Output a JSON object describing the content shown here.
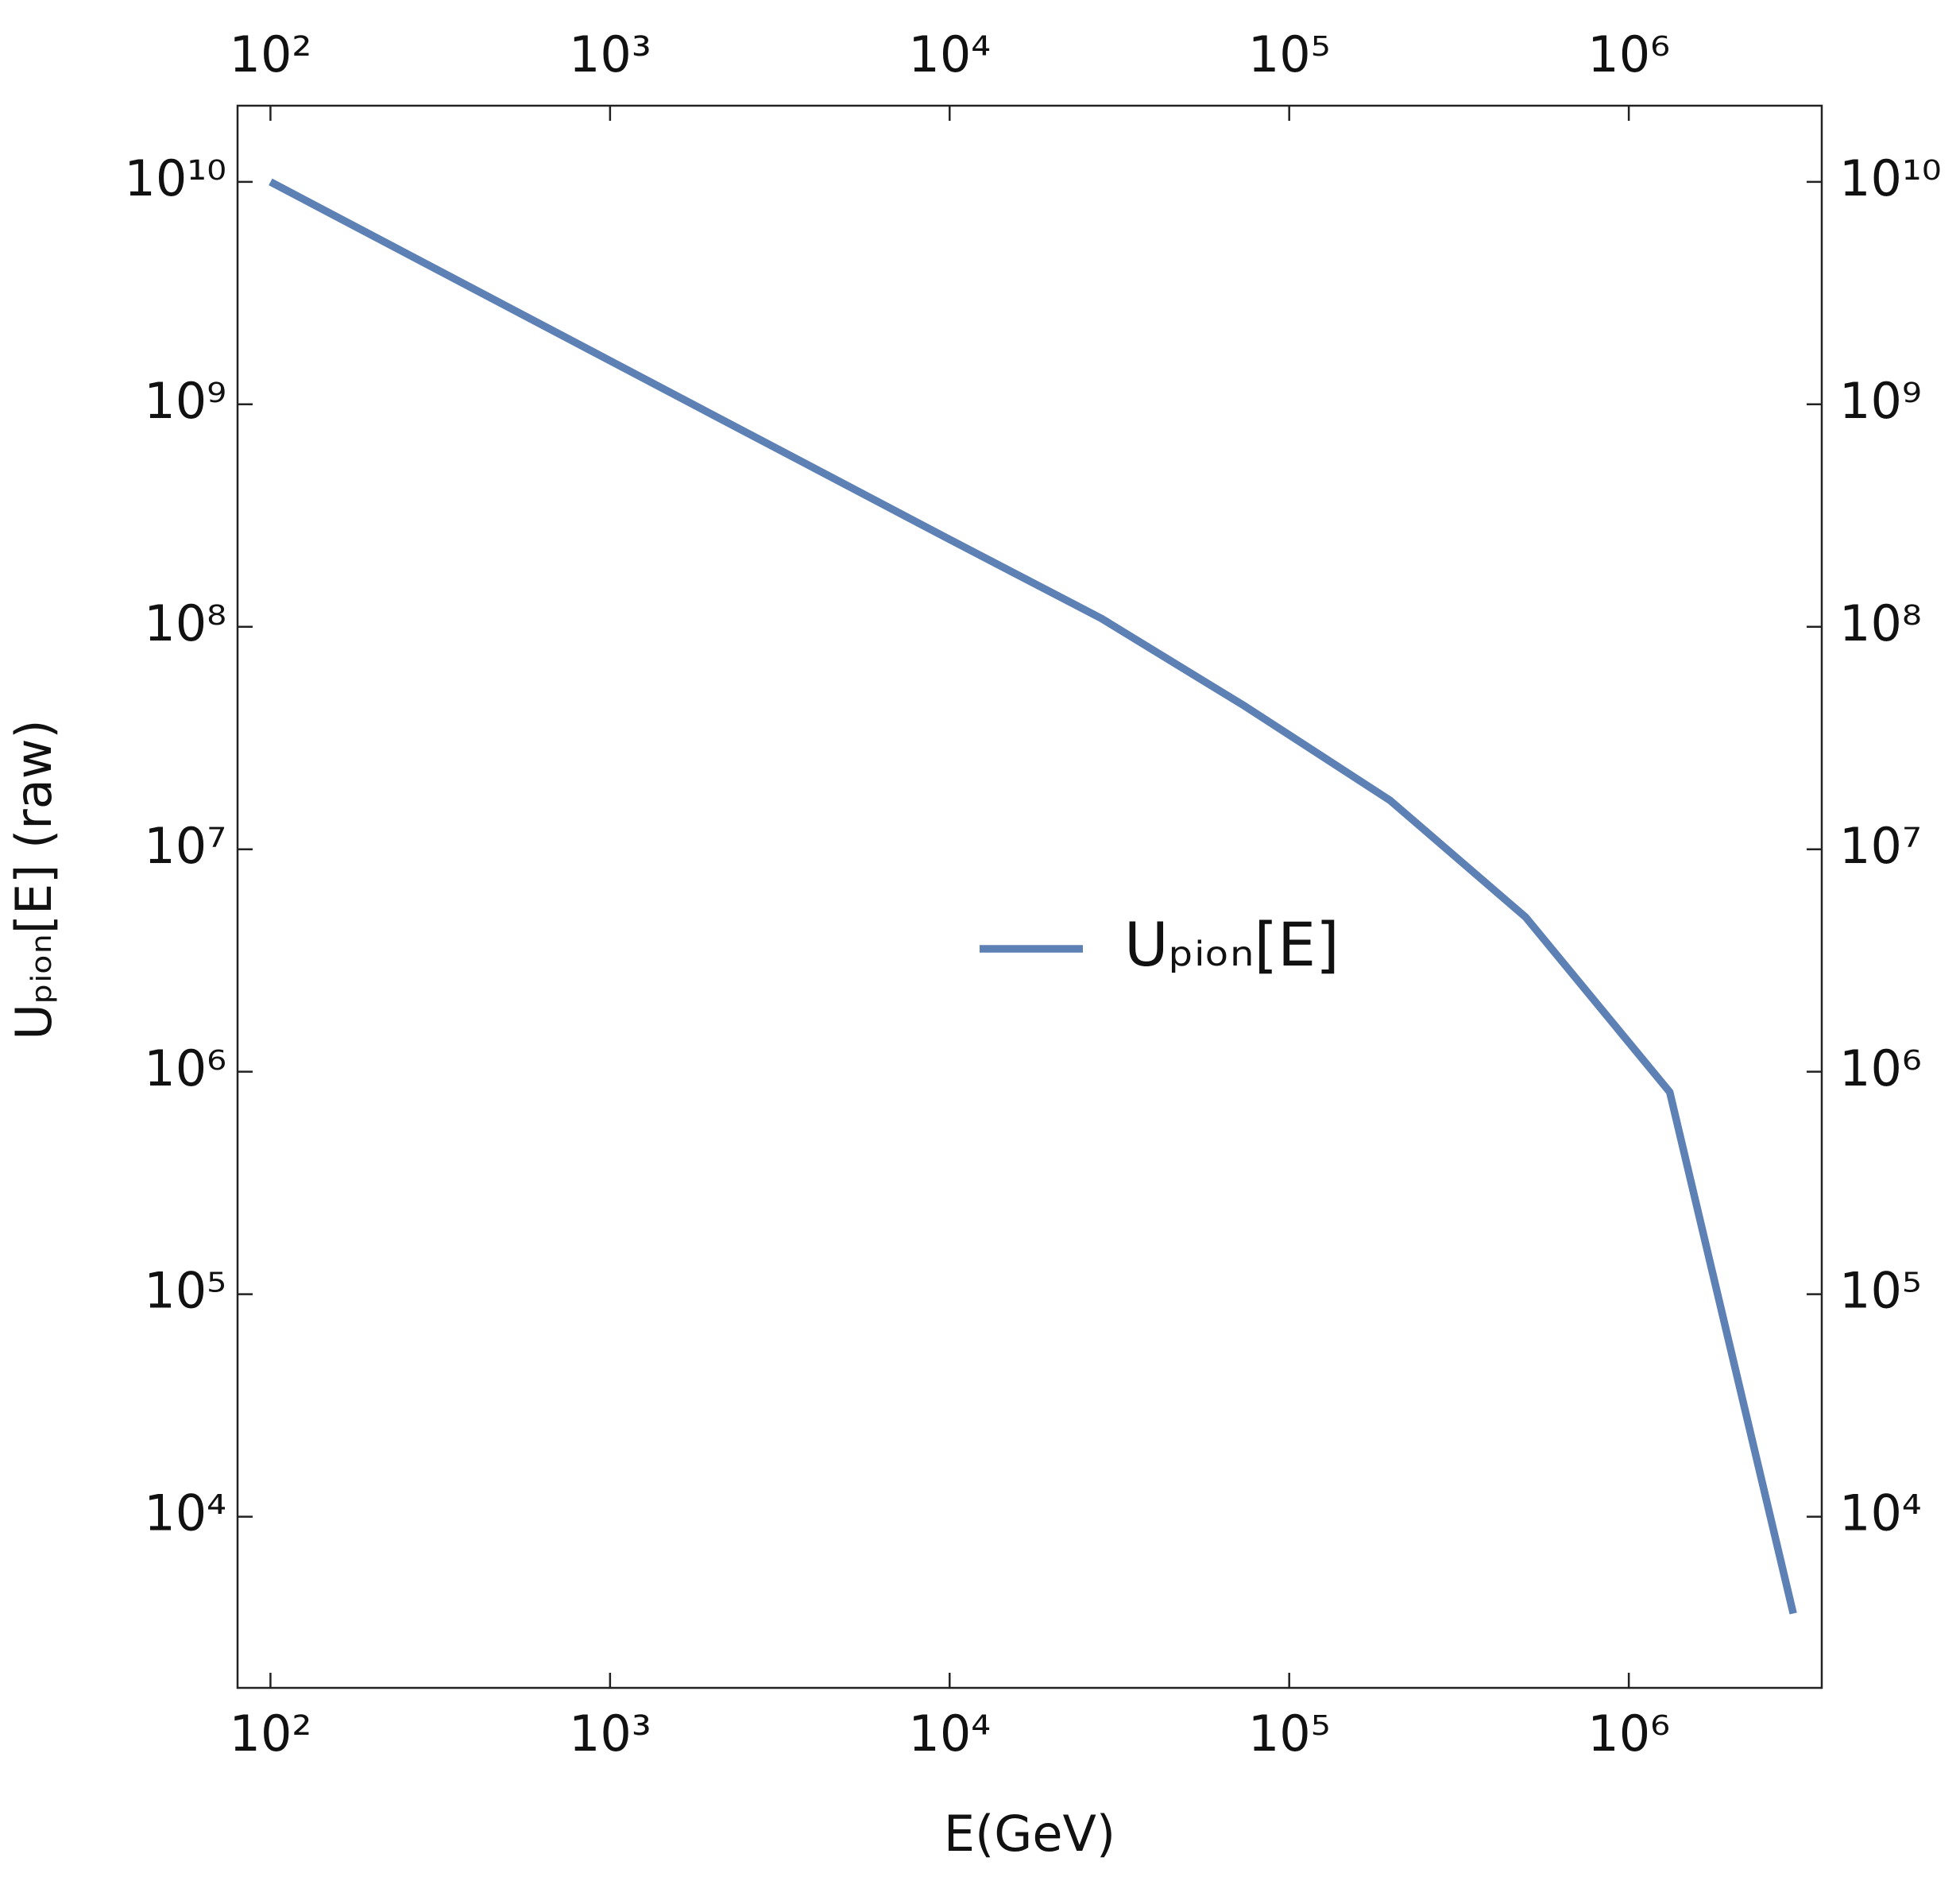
{
  "chart_data": {
    "type": "line",
    "log_x": true,
    "log_y": true,
    "x_label": "E(GeV)",
    "y_label": "Uₚᵢₒₙ[E] (raw)",
    "x": [
      100,
      1000,
      10000,
      28000,
      74000,
      198000,
      497000,
      1320000,
      3050000
    ],
    "series": [
      {
        "name": "Uₚᵢₒₙ[E]",
        "color": "#5e81b5",
        "values": [
          10000000000,
          1570000000,
          247000000,
          109000000,
          44000000,
          16600000,
          4950000,
          810000,
          3670
        ]
      }
    ],
    "xlim": [
      80,
      3700000
    ],
    "ylim": [
      1700,
      22000000000
    ],
    "xticks": [
      {
        "value": 100,
        "label": "10²"
      },
      {
        "value": 1000,
        "label": "10³"
      },
      {
        "value": 10000,
        "label": "10⁴"
      },
      {
        "value": 100000,
        "label": "10⁵"
      },
      {
        "value": 1000000,
        "label": "10⁶"
      }
    ],
    "yticks": [
      {
        "value": 10000,
        "label": "10⁴"
      },
      {
        "value": 100000,
        "label": "10⁵"
      },
      {
        "value": 1000000,
        "label": "10⁶"
      },
      {
        "value": 10000000,
        "label": "10⁷"
      },
      {
        "value": 100000000,
        "label": "10⁸"
      },
      {
        "value": 1000000000,
        "label": "10⁹"
      },
      {
        "value": 10000000000,
        "label": "10¹⁰"
      }
    ],
    "legend": "center"
  }
}
